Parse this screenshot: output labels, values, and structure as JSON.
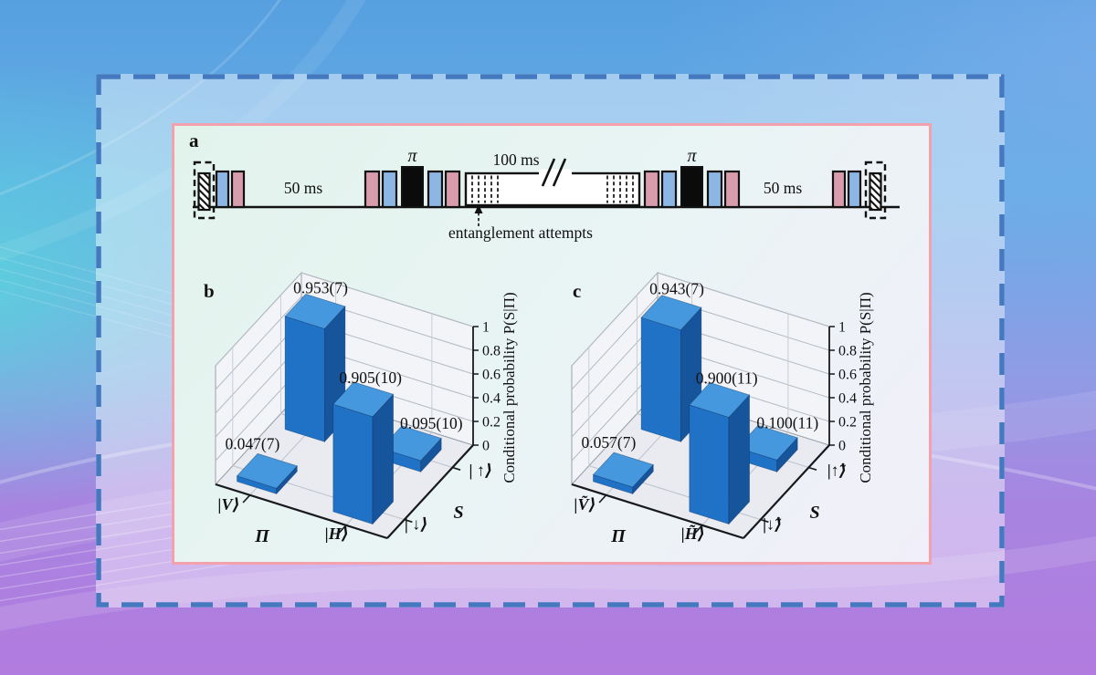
{
  "frame": {
    "dash_color": "#4579bf",
    "panel_border_color": "#f3a2ad"
  },
  "panel_a": {
    "panel_label": "a",
    "annotation": "entanglement attempts",
    "pulse_colors": {
      "pink": "#d89cac",
      "blue": "#8cb6e4",
      "black": "#0b0b0b"
    },
    "items": [
      {
        "type": "state-box"
      },
      {
        "type": "pulse",
        "color": "blue"
      },
      {
        "type": "pulse",
        "color": "pink"
      },
      {
        "type": "interval",
        "label": "50 ms"
      },
      {
        "type": "pulse",
        "color": "pink"
      },
      {
        "type": "pulse",
        "color": "blue"
      },
      {
        "type": "pi-pulse",
        "label": "π"
      },
      {
        "type": "pulse",
        "color": "blue"
      },
      {
        "type": "pulse",
        "color": "pink"
      },
      {
        "type": "attempt-window",
        "label": "100 ms"
      },
      {
        "type": "pulse",
        "color": "pink"
      },
      {
        "type": "pulse",
        "color": "blue"
      },
      {
        "type": "pi-pulse",
        "label": "π"
      },
      {
        "type": "pulse",
        "color": "blue"
      },
      {
        "type": "pulse",
        "color": "pink"
      },
      {
        "type": "interval",
        "label": "50 ms"
      },
      {
        "type": "pulse",
        "color": "pink"
      },
      {
        "type": "pulse",
        "color": "blue"
      },
      {
        "type": "state-box"
      }
    ]
  },
  "chart_data": [
    {
      "type": "bar3d",
      "panel_label": "b",
      "x_axis": {
        "title": "Π",
        "categories": [
          "|V⟩",
          "|H⟩"
        ]
      },
      "y_axis": {
        "title": "S",
        "categories": [
          "| ↓⟩",
          "| ↑⟩"
        ]
      },
      "z_axis": {
        "title": "Conditional probability P(S|Π)",
        "ticks": [
          "0",
          "0.2",
          "0.4",
          "0.6",
          "0.8",
          "1"
        ],
        "tick_values": [
          0,
          0.2,
          0.4,
          0.6,
          0.8,
          1
        ],
        "range": [
          0,
          1
        ]
      },
      "bars": [
        {
          "x": "|V⟩",
          "y": "| ↓⟩",
          "i": 0,
          "j": 0,
          "value": 0.047,
          "label": "0.047(7)"
        },
        {
          "x": "|V⟩",
          "y": "| ↑⟩",
          "i": 0,
          "j": 1,
          "value": 0.953,
          "label": "0.953(7)"
        },
        {
          "x": "|H⟩",
          "y": "| ↓⟩",
          "i": 1,
          "j": 0,
          "value": 0.905,
          "label": "0.905(10)"
        },
        {
          "x": "|H⟩",
          "y": "| ↑⟩",
          "i": 1,
          "j": 1,
          "value": 0.095,
          "label": "0.095(10)"
        }
      ],
      "bar_colors": {
        "top": "#4598dd",
        "front": "#1f72c6",
        "side": "#16549c"
      }
    },
    {
      "type": "bar3d",
      "panel_label": "c",
      "x_axis": {
        "title": "Π",
        "categories": [
          "|Ṽ⟩",
          "|H̃⟩"
        ]
      },
      "y_axis": {
        "title": "S",
        "categories": [
          "|↓̃⟩",
          "|↑̃⟩"
        ]
      },
      "z_axis": {
        "title": "Conditional probability P(S|Π)",
        "ticks": [
          "0",
          "0.2",
          "0.4",
          "0.6",
          "0.8",
          "1"
        ],
        "tick_values": [
          0,
          0.2,
          0.4,
          0.6,
          0.8,
          1
        ],
        "range": [
          0,
          1
        ]
      },
      "bars": [
        {
          "x": "|Ṽ⟩",
          "y": "|↓̃⟩",
          "i": 0,
          "j": 0,
          "value": 0.057,
          "label": "0.057(7)"
        },
        {
          "x": "|Ṽ⟩",
          "y": "|↑̃⟩",
          "i": 0,
          "j": 1,
          "value": 0.943,
          "label": "0.943(7)"
        },
        {
          "x": "|H̃⟩",
          "y": "|↓̃⟩",
          "i": 1,
          "j": 0,
          "value": 0.9,
          "label": "0.900(11)"
        },
        {
          "x": "|H̃⟩",
          "y": "|↑̃⟩",
          "i": 1,
          "j": 1,
          "value": 0.1,
          "label": "0.100(11)"
        }
      ],
      "bar_colors": {
        "top": "#4598dd",
        "front": "#1f72c6",
        "side": "#16549c"
      }
    }
  ]
}
